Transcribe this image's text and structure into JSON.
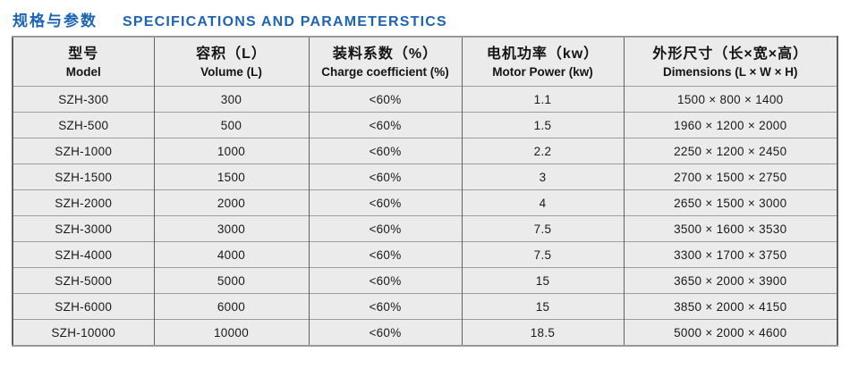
{
  "title": {
    "cn": "规格与参数",
    "en": "SPECIFICATIONS AND PARAMETERSTICS"
  },
  "colors": {
    "accent_blue": "#1d64b4",
    "cell_background": "#ebebeb",
    "vertical_line": "#616161",
    "horizontal_line": "#9d9d9d",
    "text": "#1a1a1a"
  },
  "chart_data": {
    "type": "table",
    "title": "规格与参数 SPECIFICATIONS AND PARAMETERSTICS",
    "columns": [
      {
        "cn": "型号",
        "en": "Model"
      },
      {
        "cn": "容积（L）",
        "en": "Volume (L)"
      },
      {
        "cn": "装料系数（%）",
        "en": "Charge coefficient (%)"
      },
      {
        "cn": "电机功率（kw）",
        "en": "Motor Power (kw)"
      },
      {
        "cn": "外形尺寸（长×宽×高）",
        "en": "Dimensions (L × W × H)"
      }
    ],
    "rows": [
      [
        "SZH-300",
        "300",
        "<60%",
        "1.1",
        "1500 × 800 × 1400"
      ],
      [
        "SZH-500",
        "500",
        "<60%",
        "1.5",
        "1960 × 1200 × 2000"
      ],
      [
        "SZH-1000",
        "1000",
        "<60%",
        "2.2",
        "2250 × 1200 × 2450"
      ],
      [
        "SZH-1500",
        "1500",
        "<60%",
        "3",
        "2700 × 1500 × 2750"
      ],
      [
        "SZH-2000",
        "2000",
        "<60%",
        "4",
        "2650 × 1500 × 3000"
      ],
      [
        "SZH-3000",
        "3000",
        "<60%",
        "7.5",
        "3500 × 1600 × 3530"
      ],
      [
        "SZH-4000",
        "4000",
        "<60%",
        "7.5",
        "3300 × 1700 × 3750"
      ],
      [
        "SZH-5000",
        "5000",
        "<60%",
        "15",
        "3650 × 2000 × 3900"
      ],
      [
        "SZH-6000",
        "6000",
        "<60%",
        "15",
        "3850 × 2000 × 4150"
      ],
      [
        "SZH-10000",
        "10000",
        "<60%",
        "18.5",
        "5000 × 2000 × 4600"
      ]
    ]
  }
}
